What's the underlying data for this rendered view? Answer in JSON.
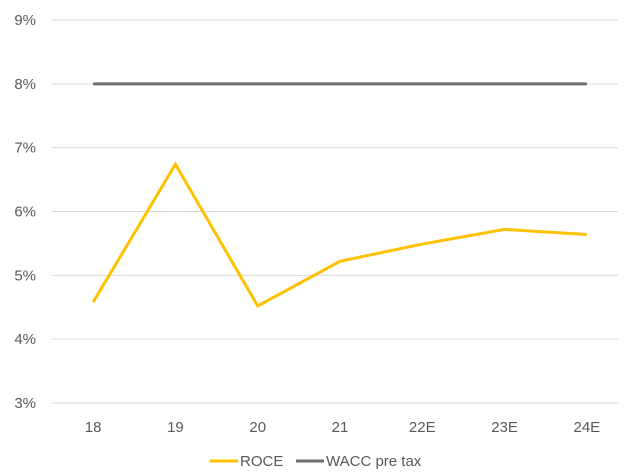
{
  "chart_data": {
    "type": "line",
    "title": "",
    "xlabel": "",
    "ylabel": "",
    "categories": [
      "18",
      "19",
      "20",
      "21",
      "22E",
      "23E",
      "24E"
    ],
    "y_ticks": [
      "3%",
      "4%",
      "5%",
      "6%",
      "7%",
      "8%",
      "9%"
    ],
    "ylim": [
      3,
      9
    ],
    "y_unit": "%",
    "grid": "horizontal",
    "legend_position": "bottom",
    "series": [
      {
        "name": "ROCE",
        "color": "#FFC000",
        "values": [
          4.58,
          6.74,
          4.52,
          5.22,
          5.49,
          5.72,
          5.64
        ]
      },
      {
        "name": "WACC pre tax",
        "color": "#6E6E6E",
        "values": [
          8.0,
          8.0,
          8.0,
          8.0,
          8.0,
          8.0,
          8.0
        ]
      }
    ]
  }
}
